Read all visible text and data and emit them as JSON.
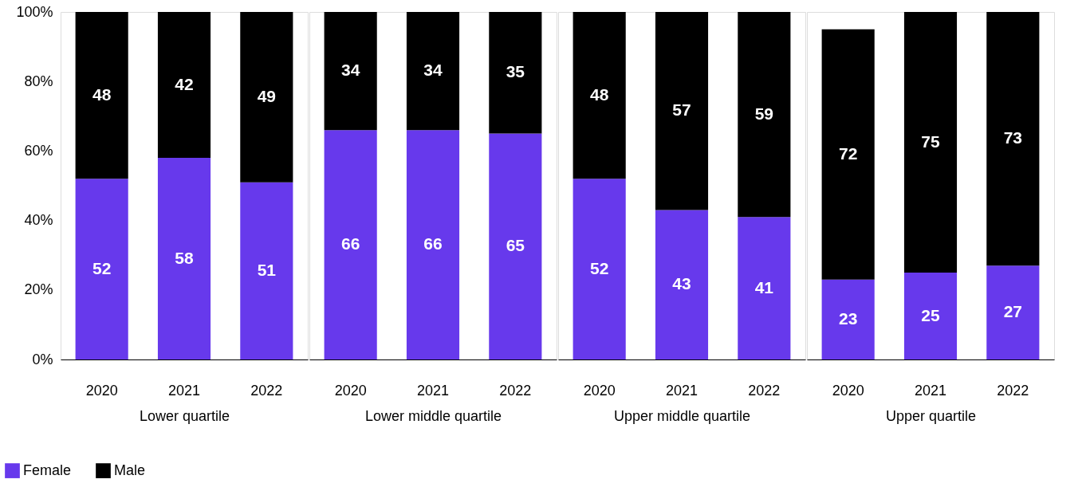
{
  "chart_data": [
    {
      "type": "bar",
      "stacked": true,
      "categories": [
        "2020",
        "2021",
        "2022"
      ],
      "xlabel": "Lower quartile",
      "ylim": [
        0,
        100
      ],
      "yticks": [
        {
          "value": 0,
          "label": "0%"
        },
        {
          "value": 20,
          "label": "20%"
        },
        {
          "value": 40,
          "label": "40%"
        },
        {
          "value": 60,
          "label": "60%"
        },
        {
          "value": 80,
          "label": "80%"
        },
        {
          "value": 100,
          "label": "100%"
        }
      ],
      "grid": false,
      "legend": "bottom left",
      "data_labels": true,
      "series": [
        {
          "name": "Female",
          "color": "#6739ec",
          "values": [
            52,
            58,
            51
          ]
        },
        {
          "name": "Male",
          "color": "#000000",
          "values": [
            48,
            42,
            49
          ]
        }
      ]
    },
    {
      "type": "bar",
      "stacked": true,
      "categories": [
        "2020",
        "2021",
        "2022"
      ],
      "xlabel": "Lower middle quartile",
      "ylim": [
        0,
        100
      ],
      "tick_labels": "x",
      "grid": false,
      "data_labels": true,
      "series": [
        {
          "color": "#6739ec",
          "values": [
            66,
            66,
            65
          ]
        },
        {
          "color": "#000000",
          "values": [
            34,
            34,
            35
          ]
        }
      ]
    },
    {
      "type": "bar",
      "stacked": true,
      "categories": [
        "2020",
        "2021",
        "2022"
      ],
      "xlabel": "Upper middle quartile",
      "ylim": [
        0,
        100
      ],
      "tick_labels": "x",
      "grid": false,
      "data_labels": true,
      "series": [
        {
          "color": "#6739ec",
          "values": [
            52,
            43,
            41
          ]
        },
        {
          "color": "#000000",
          "values": [
            48,
            57,
            59
          ]
        }
      ]
    },
    {
      "type": "bar",
      "stacked": true,
      "categories": [
        "2020",
        "2021",
        "2022"
      ],
      "xlabel": "Upper quartile",
      "ylim": [
        0,
        100
      ],
      "tick_labels": "x",
      "grid": false,
      "data_labels": true,
      "series": [
        {
          "color": "#6739ec",
          "values": [
            23,
            25,
            27
          ]
        },
        {
          "color": "#000000",
          "values": [
            72,
            75,
            73
          ]
        }
      ]
    }
  ]
}
